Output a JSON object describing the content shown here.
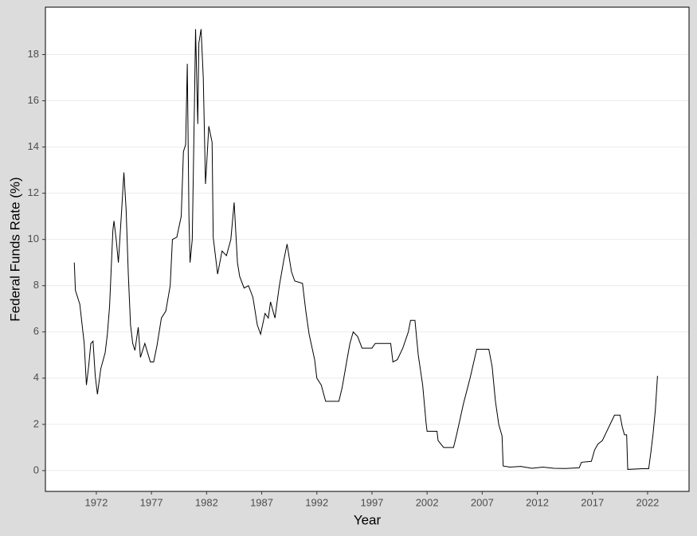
{
  "chart_data": {
    "type": "line",
    "x_label": "Year",
    "y_label": "Federal Funds Rate (%)",
    "series": [
      {
        "name": "Federal Funds Rate",
        "color": "#000000",
        "x": [
          1970.0,
          1970.1,
          1970.5,
          1970.9,
          1971.1,
          1971.3,
          1971.5,
          1971.7,
          1971.9,
          1972.1,
          1972.4,
          1972.8,
          1973.0,
          1973.2,
          1973.5,
          1973.6,
          1973.8,
          1974.0,
          1974.3,
          1974.5,
          1974.7,
          1974.9,
          1975.1,
          1975.3,
          1975.5,
          1975.8,
          1976.0,
          1976.4,
          1976.9,
          1977.2,
          1977.5,
          1977.9,
          1978.3,
          1978.7,
          1978.9,
          1979.3,
          1979.7,
          1979.9,
          1980.1,
          1980.25,
          1980.4,
          1980.5,
          1980.7,
          1980.9,
          1981.0,
          1981.2,
          1981.3,
          1981.5,
          1981.7,
          1981.9,
          1982.0,
          1982.2,
          1982.5,
          1982.6,
          1982.9,
          1983.0,
          1983.4,
          1983.8,
          1984.2,
          1984.5,
          1984.8,
          1985.0,
          1985.4,
          1985.8,
          1986.2,
          1986.6,
          1986.9,
          1987.3,
          1987.6,
          1987.8,
          1988.2,
          1988.6,
          1989.0,
          1989.3,
          1989.7,
          1990.0,
          1990.7,
          1991.0,
          1991.3,
          1991.8,
          1992.0,
          1992.4,
          1992.8,
          1993.5,
          1994.0,
          1994.3,
          1994.7,
          1995.0,
          1995.3,
          1995.7,
          1996.1,
          1996.5,
          1997.0,
          1997.3,
          1998.0,
          1998.7,
          1998.9,
          1999.3,
          1999.8,
          2000.3,
          2000.5,
          2000.9,
          2001.2,
          2001.6,
          2001.9,
          2002.0,
          2002.9,
          2003.0,
          2003.5,
          2004.4,
          2004.7,
          2005.3,
          2005.9,
          2006.5,
          2007.6,
          2007.9,
          2008.2,
          2008.5,
          2008.8,
          2008.9,
          2009.5,
          2010.5,
          2011.5,
          2012.5,
          2013.5,
          2014.5,
          2015.8,
          2016.0,
          2016.9,
          2017.2,
          2017.5,
          2017.9,
          2018.3,
          2018.9,
          2019.0,
          2019.5,
          2019.7,
          2019.9,
          2020.1,
          2020.2,
          2021.5,
          2022.1,
          2022.3,
          2022.5,
          2022.7,
          2022.9
        ],
        "values": [
          9.0,
          7.8,
          7.2,
          5.5,
          3.7,
          4.5,
          5.5,
          5.6,
          4.1,
          3.3,
          4.4,
          5.1,
          5.9,
          7.1,
          10.4,
          10.8,
          10.0,
          9.0,
          11.3,
          12.9,
          11.3,
          8.5,
          6.3,
          5.5,
          5.2,
          6.2,
          4.9,
          5.5,
          4.7,
          4.7,
          5.4,
          6.6,
          6.9,
          8.0,
          10.0,
          10.1,
          11.0,
          13.8,
          14.1,
          17.6,
          11.0,
          9.0,
          10.0,
          15.9,
          19.1,
          15.0,
          18.5,
          19.1,
          17.0,
          12.4,
          13.2,
          14.9,
          14.2,
          10.1,
          8.9,
          8.5,
          9.5,
          9.3,
          10.0,
          11.6,
          9.0,
          8.4,
          7.9,
          8.0,
          7.5,
          6.3,
          5.9,
          6.8,
          6.6,
          7.3,
          6.6,
          8.0,
          9.1,
          9.8,
          8.6,
          8.2,
          8.1,
          6.9,
          5.9,
          4.8,
          4.0,
          3.7,
          3.0,
          3.0,
          3.0,
          3.6,
          4.7,
          5.5,
          6.0,
          5.8,
          5.3,
          5.3,
          5.3,
          5.5,
          5.5,
          5.5,
          4.7,
          4.8,
          5.3,
          6.0,
          6.5,
          6.5,
          5.0,
          3.7,
          2.1,
          1.7,
          1.7,
          1.3,
          1.0,
          1.0,
          1.6,
          2.9,
          4.0,
          5.25,
          5.25,
          4.5,
          3.0,
          2.0,
          1.5,
          0.2,
          0.15,
          0.18,
          0.1,
          0.15,
          0.1,
          0.09,
          0.12,
          0.36,
          0.4,
          0.9,
          1.15,
          1.3,
          1.7,
          2.3,
          2.4,
          2.4,
          1.9,
          1.55,
          1.55,
          0.05,
          0.08,
          0.08,
          0.8,
          1.6,
          2.6,
          4.1
        ]
      }
    ],
    "xlim": [
      1967.38,
      2025.76
    ],
    "xticks": [
      1972,
      1977,
      1982,
      1987,
      1992,
      1997,
      2002,
      2007,
      2012,
      2017,
      2022
    ],
    "ylim": [
      -0.9,
      20.05
    ],
    "yticks": [
      0,
      2,
      4,
      6,
      8,
      10,
      12,
      14,
      16,
      18
    ],
    "grid": true
  }
}
